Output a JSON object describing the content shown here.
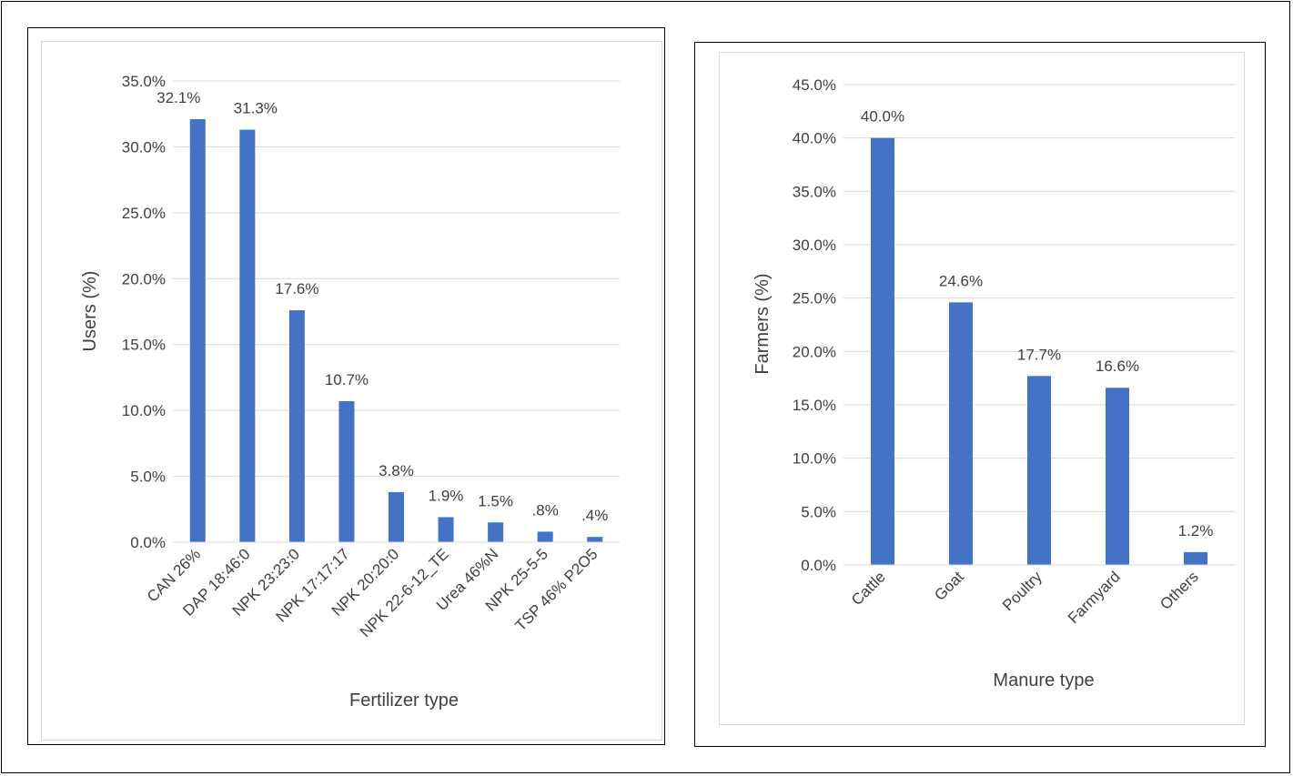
{
  "colors": {
    "bar": "#4472c4",
    "grid": "#d9d9d9",
    "text": "#404040",
    "border": "#000000"
  },
  "chart_data": [
    {
      "type": "bar",
      "title": "",
      "xlabel": "Fertilizer type",
      "ylabel": "Users (%)",
      "ylim": [
        0,
        35
      ],
      "ytick_step": 5,
      "grid": true,
      "legend": "none",
      "categories": [
        "CAN 26%",
        "DAP 18:46:0",
        "NPK 23:23:0",
        "NPK 17:17:17",
        "NPK 20:20:0",
        "NPK 22-6-12_TE",
        "Urea 46%N",
        "NPK 25-5-5",
        "TSP 46% P2O5"
      ],
      "values": [
        32.1,
        31.3,
        17.6,
        10.7,
        3.8,
        1.9,
        1.5,
        0.8,
        0.4
      ],
      "data_labels": [
        "32.1%",
        "31.3%",
        "17.6%",
        "10.7%",
        "3.8%",
        "1.9%",
        "1.5%",
        ".8%",
        ".4%"
      ],
      "ytick_labels": [
        "0.0%",
        "5.0%",
        "10.0%",
        "15.0%",
        "20.0%",
        "25.0%",
        "30.0%",
        "35.0%"
      ]
    },
    {
      "type": "bar",
      "title": "",
      "xlabel": "Manure type",
      "ylabel": "Farmers (%)",
      "ylim": [
        0,
        45
      ],
      "ytick_step": 5,
      "grid": true,
      "legend": "none",
      "categories": [
        "Cattle",
        "Goat",
        "Poultry",
        "Farmyard",
        "Others"
      ],
      "values": [
        40.0,
        24.6,
        17.7,
        16.6,
        1.2
      ],
      "data_labels": [
        "40.0%",
        "24.6%",
        "17.7%",
        "16.6%",
        "1.2%"
      ],
      "ytick_labels": [
        "0.0%",
        "5.0%",
        "10.0%",
        "15.0%",
        "20.0%",
        "25.0%",
        "30.0%",
        "35.0%",
        "40.0%",
        "45.0%"
      ]
    }
  ]
}
